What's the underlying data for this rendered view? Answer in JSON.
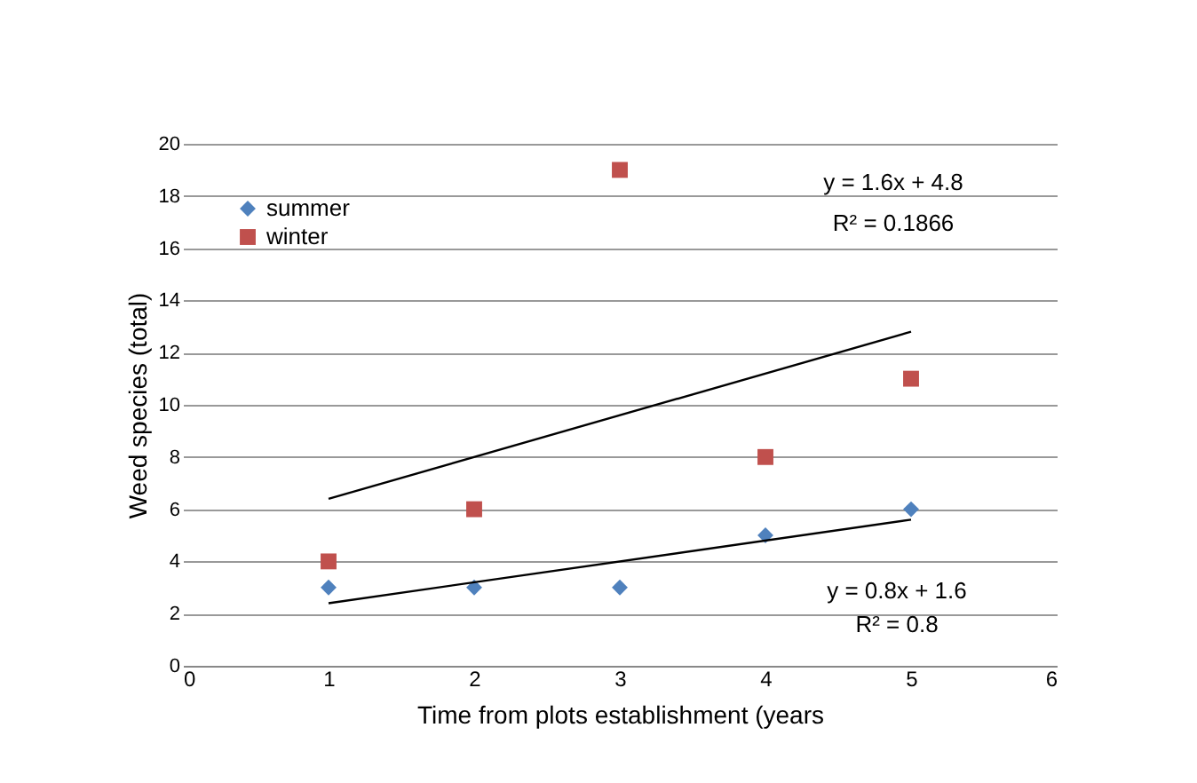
{
  "chart_data": {
    "type": "scatter",
    "xlabel": "Time from plots establishment (years",
    "ylabel": "Weed species (total)",
    "xlim": [
      0,
      6
    ],
    "xticks": [
      0,
      1,
      2,
      3,
      4,
      5,
      6
    ],
    "ylim": [
      0,
      20
    ],
    "yticks": [
      0,
      2,
      4,
      6,
      8,
      10,
      12,
      14,
      16,
      18,
      20
    ],
    "grid": "y",
    "legend": "top left",
    "series": [
      {
        "name": "summer",
        "marker": "diamond",
        "color": "#4f81bd",
        "x": [
          1,
          2,
          3,
          4,
          5
        ],
        "values": [
          3,
          3,
          3,
          5,
          6
        ]
      },
      {
        "name": "winter",
        "marker": "square",
        "color": "#c0504d",
        "x": [
          1,
          2,
          3,
          4,
          5
        ],
        "values": [
          4,
          6,
          19,
          8,
          11
        ]
      },
      {
        "type": "line",
        "color": "#000000",
        "x": [
          1,
          5
        ],
        "values": [
          2.4,
          5.6
        ]
      },
      {
        "type": "line",
        "color": "#000000",
        "x": [
          1,
          5
        ],
        "values": [
          6.4,
          12.8
        ]
      }
    ],
    "annotations": [
      "y = 1.6x + 4.8",
      "R² = 0.1866",
      "y = 0.8x + 1.6",
      "R² = 0.8"
    ]
  }
}
